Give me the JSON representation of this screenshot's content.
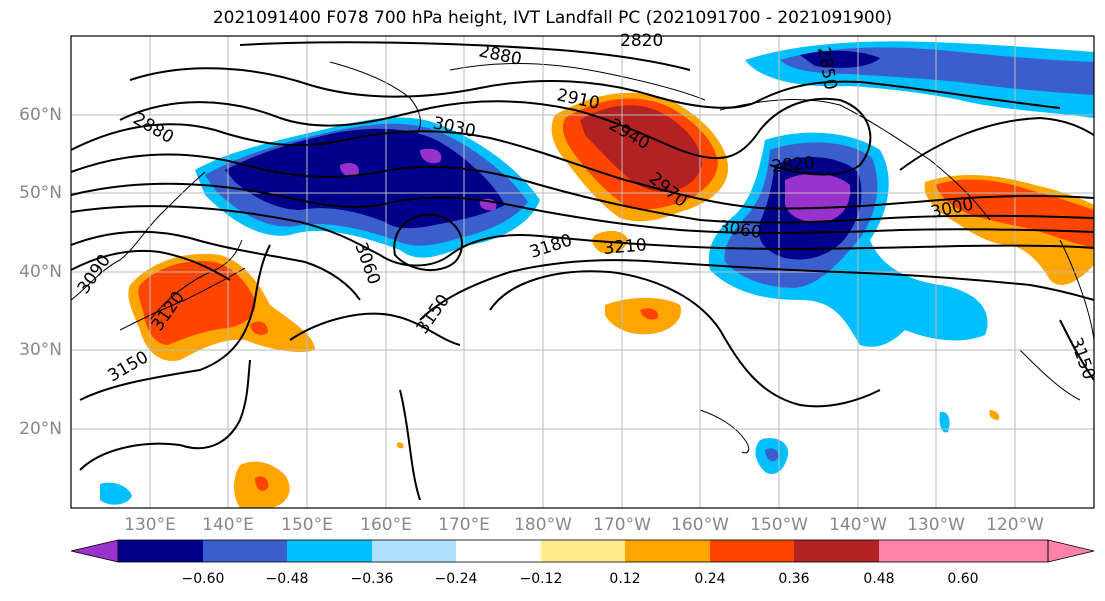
{
  "title": "2021091400 F078 700 hPa height, IVT Landfall PC (2021091700 - 2021091900)",
  "lat_labels": [
    "20°N",
    "30°N",
    "40°N",
    "50°N",
    "60°N"
  ],
  "lon_labels": [
    "130°E",
    "140°E",
    "150°E",
    "160°E",
    "170°E",
    "180°W",
    "170°W",
    "160°W",
    "150°W",
    "140°W",
    "130°W",
    "120°W"
  ],
  "contour_labels": [
    "2820",
    "2850",
    "2880",
    "2880",
    "2910",
    "2940",
    "2970",
    "3000",
    "3030",
    "3060",
    "3060",
    "3090",
    "3120",
    "3150",
    "3150",
    "3150",
    "3180",
    "3210",
    "2820"
  ],
  "colorbar": {
    "ticks": [
      "−0.60",
      "−0.48",
      "−0.36",
      "−0.24",
      "−0.12",
      "0.12",
      "0.24",
      "0.36",
      "0.48",
      "0.60"
    ],
    "colors": [
      "#9932CC",
      "#00008B",
      "#3A5FCD",
      "#00BFFF",
      "#B0E2FF",
      "#FFFFFF",
      "#FFEC8B",
      "#FFA500",
      "#FF4500",
      "#B22222",
      "#FF82AB"
    ]
  }
}
